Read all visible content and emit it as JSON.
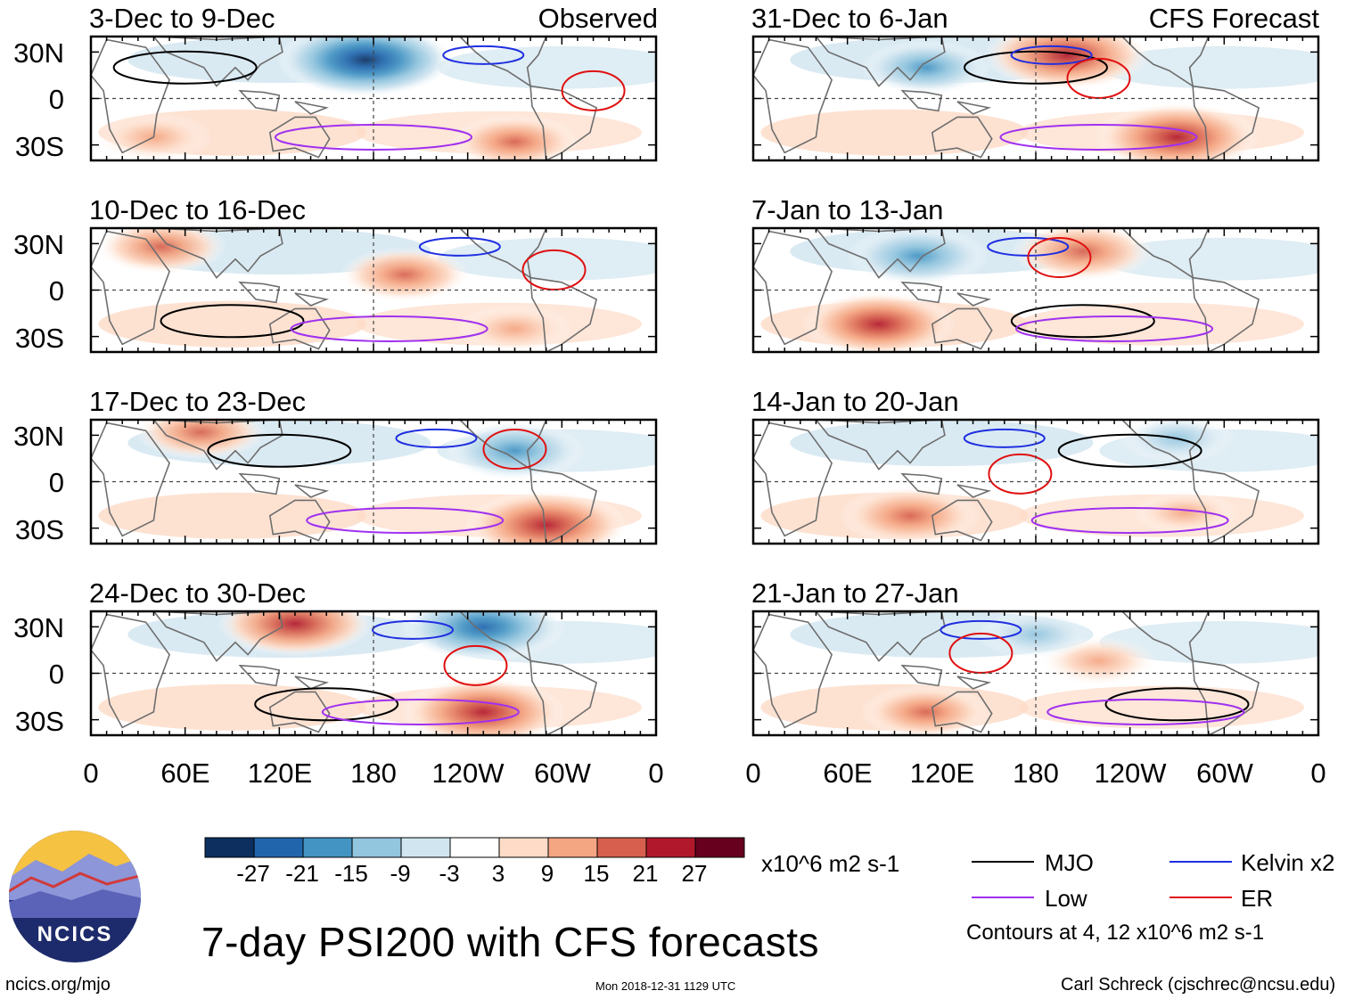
{
  "title": "7-day PSI200 with CFS forecasts",
  "chart_data": {
    "type": "heatmap",
    "variable": "7-day PSI200",
    "units": "x10^6 m2 s-1",
    "x_ticks": [
      "0",
      "60E",
      "120E",
      "180",
      "120W",
      "60W",
      "0"
    ],
    "y_ticks": [
      "30N",
      "0",
      "30S"
    ],
    "colorbar": {
      "tick_labels": [
        "-27",
        "-21",
        "-15",
        "-9",
        "-3",
        "3",
        "9",
        "15",
        "21",
        "27"
      ],
      "colors": [
        "#0d2f60",
        "#2166ac",
        "#4393c3",
        "#92c5de",
        "#d1e5f0",
        "#ffffff",
        "#fddbc7",
        "#f4a582",
        "#d6604d",
        "#b2182b",
        "#67001f"
      ]
    },
    "panels": [
      {
        "id": "obs1",
        "label": "3-Dec to 9-Dec",
        "tag": "Observed",
        "column": "left",
        "anomalies": [
          {
            "lon": 175,
            "lat": 25,
            "value": -27
          },
          {
            "lon": 40,
            "lat": -25,
            "value": 12
          },
          {
            "lon": 270,
            "lat": -28,
            "value": 15
          }
        ]
      },
      {
        "id": "obs2",
        "label": "10-Dec to 16-Dec",
        "column": "left",
        "anomalies": [
          {
            "lon": 45,
            "lat": 28,
            "value": 15
          },
          {
            "lon": 200,
            "lat": 10,
            "value": 15
          },
          {
            "lon": 270,
            "lat": -25,
            "value": 12
          }
        ]
      },
      {
        "id": "obs3",
        "label": "17-Dec to 23-Dec",
        "column": "left",
        "anomalies": [
          {
            "lon": 70,
            "lat": 32,
            "value": 15
          },
          {
            "lon": 290,
            "lat": -28,
            "value": 24
          },
          {
            "lon": 270,
            "lat": 20,
            "value": -18
          }
        ]
      },
      {
        "id": "obs4",
        "label": "24-Dec to 30-Dec",
        "column": "left",
        "anomalies": [
          {
            "lon": 130,
            "lat": 32,
            "value": 21
          },
          {
            "lon": 250,
            "lat": -25,
            "value": 24
          },
          {
            "lon": 250,
            "lat": 30,
            "value": -24
          }
        ]
      },
      {
        "id": "fc1",
        "label": "31-Dec to 6-Jan",
        "tag": "CFS Forecast",
        "column": "right",
        "anomalies": [
          {
            "lon": 200,
            "lat": 28,
            "value": 24
          },
          {
            "lon": 270,
            "lat": -25,
            "value": 24
          },
          {
            "lon": 110,
            "lat": 20,
            "value": -15
          }
        ]
      },
      {
        "id": "fc2",
        "label": "7-Jan to 13-Jan",
        "column": "right",
        "anomalies": [
          {
            "lon": 80,
            "lat": -22,
            "value": 21
          },
          {
            "lon": 210,
            "lat": 25,
            "value": 18
          },
          {
            "lon": 105,
            "lat": 22,
            "value": -18
          }
        ]
      },
      {
        "id": "fc3",
        "label": "14-Jan to 20-Jan",
        "column": "right",
        "anomalies": [
          {
            "lon": 100,
            "lat": -22,
            "value": 18
          },
          {
            "lon": 275,
            "lat": -20,
            "value": 9
          },
          {
            "lon": 270,
            "lat": 28,
            "value": -12
          }
        ]
      },
      {
        "id": "fc4",
        "label": "21-Jan to 27-Jan",
        "column": "right",
        "anomalies": [
          {
            "lon": 110,
            "lat": -25,
            "value": 15
          },
          {
            "lon": 220,
            "lat": 8,
            "value": 12
          },
          {
            "lon": 180,
            "lat": 25,
            "value": -12
          }
        ]
      }
    ],
    "contour_legend": [
      {
        "name": "MJO",
        "color": "#000000"
      },
      {
        "name": "Kelvin x2",
        "color": "#1f2fe0"
      },
      {
        "name": "Low",
        "color": "#a030f0"
      },
      {
        "name": "ER",
        "color": "#e01010"
      }
    ],
    "contour_note": "Contours at 4, 12 x10^6 m2 s-1"
  },
  "branding": {
    "logo_text": "NCICS",
    "url": "ncics.org/mjo"
  },
  "timestamp": "Mon 2018-12-31 1129 UTC",
  "author": "Carl Schreck (cjschrec@ncsu.edu)"
}
